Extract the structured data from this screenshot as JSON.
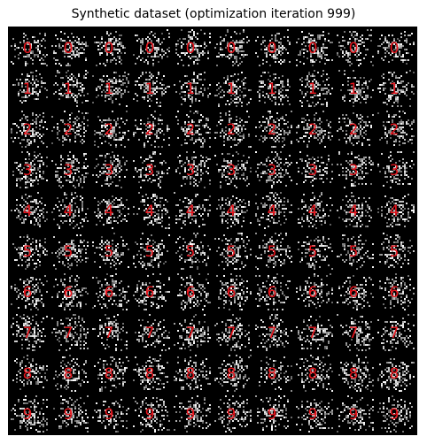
{
  "figure": {
    "title": "Synthetic dataset (optimization iteration 999)"
  },
  "grid": {
    "rows": 10,
    "cols": 10,
    "row_labels": [
      "0",
      "1",
      "2",
      "3",
      "4",
      "5",
      "6",
      "7",
      "8",
      "9"
    ],
    "label_color": "#e8141c",
    "background_color": "#000000",
    "noise_color": "#ffffff"
  }
}
